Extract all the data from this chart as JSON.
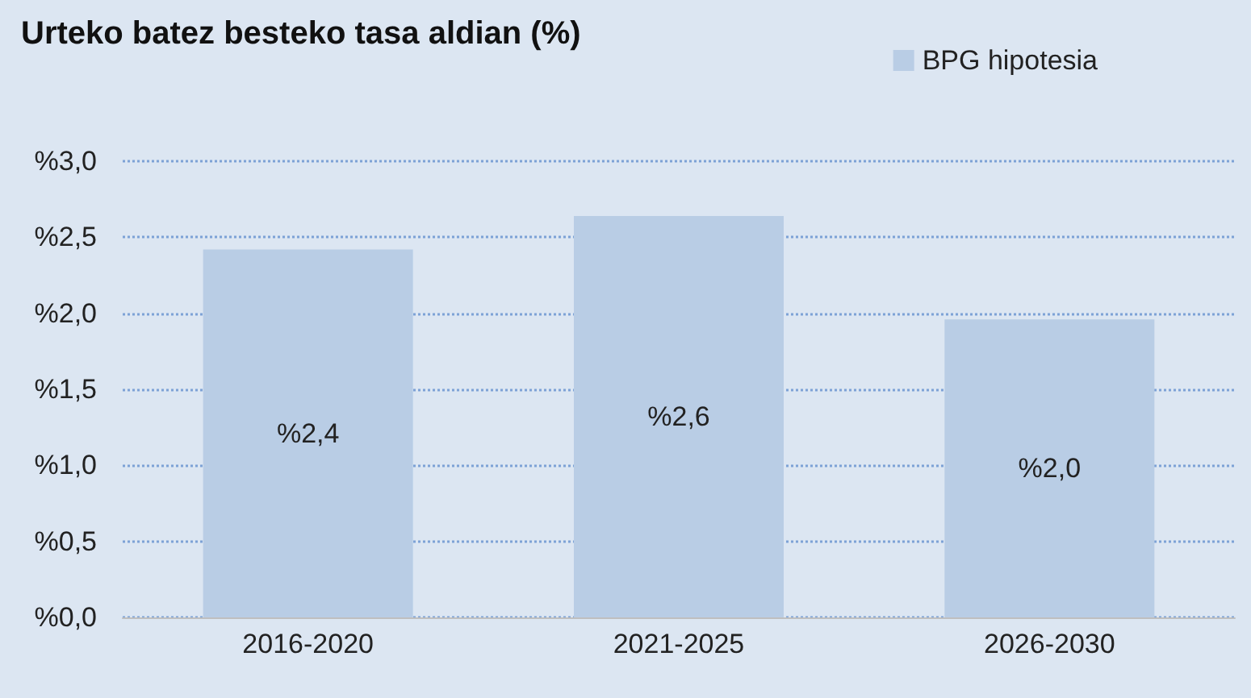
{
  "chart_data": {
    "type": "bar",
    "title": "Urteko batez besteko tasa aldian (%)",
    "categories": [
      "2016-2020",
      "2021-2025",
      "2026-2030"
    ],
    "series": [
      {
        "name": "BPG hipotesia",
        "color": "#b9cde5",
        "values": [
          2.42,
          2.64,
          1.96
        ],
        "value_labels": [
          "%2,4",
          "%2,6",
          "%2,0"
        ]
      }
    ],
    "ylim": [
      0,
      3
    ],
    "yticks": [
      {
        "value": 0,
        "label": "%0,0"
      },
      {
        "value": 0.5,
        "label": "%0,5"
      },
      {
        "value": 1,
        "label": "%1,0"
      },
      {
        "value": 1.5,
        "label": "%1,5"
      },
      {
        "value": 2,
        "label": "%2,0"
      },
      {
        "value": 2.5,
        "label": "%2,5"
      },
      {
        "value": 3,
        "label": "%3,0"
      }
    ],
    "grid": "y",
    "legend": "top right"
  }
}
